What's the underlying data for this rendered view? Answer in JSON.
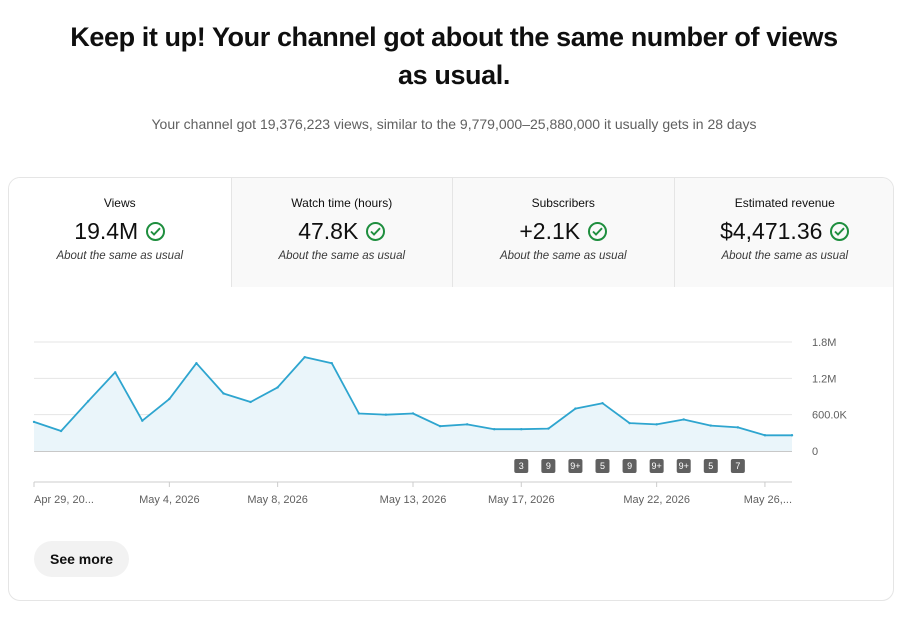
{
  "headline": {
    "line1": "Keep it up! Your channel got about the same number of views",
    "line2": "as usual."
  },
  "summary": "Your channel got 19,376,223 views, similar to the 9,779,000–25,880,000 it usually gets in 28 days",
  "tabs": [
    {
      "label": "Views",
      "value": "19.4M",
      "status": "About the same as usual",
      "icon": "check-circle-icon"
    },
    {
      "label": "Watch time (hours)",
      "value": "47.8K",
      "status": "About the same as usual",
      "icon": "check-circle-icon"
    },
    {
      "label": "Subscribers",
      "value": "+2.1K",
      "status": "About the same as usual",
      "icon": "check-circle-icon"
    },
    {
      "label": "Estimated revenue",
      "value": "$4,471.36",
      "status": "About the same as usual",
      "icon": "check-circle-icon"
    }
  ],
  "chart_data": {
    "type": "area",
    "title": "",
    "xlabel": "",
    "ylabel": "",
    "ylim": [
      0,
      1800000
    ],
    "yticks": [
      "0",
      "600.0K",
      "1.2M",
      "1.8M"
    ],
    "ytick_values": [
      0,
      600000,
      1200000,
      1800000
    ],
    "x": [
      "Apr 29",
      "Apr 30",
      "May 1",
      "May 2",
      "May 3",
      "May 4",
      "May 5",
      "May 6",
      "May 7",
      "May 8",
      "May 9",
      "May 10",
      "May 11",
      "May 12",
      "May 13",
      "May 14",
      "May 15",
      "May 16",
      "May 17",
      "May 18",
      "May 19",
      "May 20",
      "May 21",
      "May 22",
      "May 23",
      "May 24",
      "May 25",
      "May 26",
      "May 27"
    ],
    "series": [
      {
        "values": [
          480000,
          330000,
          820000,
          1300000,
          500000,
          860000,
          1450000,
          950000,
          810000,
          1050000,
          1550000,
          1450000,
          620000,
          600000,
          620000,
          410000,
          440000,
          360000,
          360000,
          370000,
          700000,
          790000,
          460000,
          440000,
          520000,
          420000,
          390000,
          260000,
          260000
        ]
      }
    ],
    "xtick_labels": [
      "Apr 29, 20...",
      "May 4, 2026",
      "May 8, 2026",
      "May 13, 2026",
      "May 17, 2026",
      "May 22, 2026",
      "May 26,..."
    ],
    "xtick_dates": [
      "Apr 29",
      "May 4",
      "May 8",
      "May 13",
      "May 17",
      "May 22",
      "May 26"
    ],
    "badges": [
      {
        "date": "May 17",
        "label": "3"
      },
      {
        "date": "May 18",
        "label": "9"
      },
      {
        "date": "May 19",
        "label": "9+"
      },
      {
        "date": "May 20",
        "label": "5"
      },
      {
        "date": "May 21",
        "label": "9"
      },
      {
        "date": "May 22",
        "label": "9+"
      },
      {
        "date": "May 23",
        "label": "9+"
      },
      {
        "date": "May 24",
        "label": "5"
      },
      {
        "date": "May 25",
        "label": "7"
      }
    ],
    "grid": true,
    "colors": {
      "line": "#2ea5cf",
      "fill": "#eaf5fa",
      "grid": "#e5e5e5",
      "baseline": "#909090",
      "badge": "#606060"
    }
  },
  "see_more": "See more"
}
